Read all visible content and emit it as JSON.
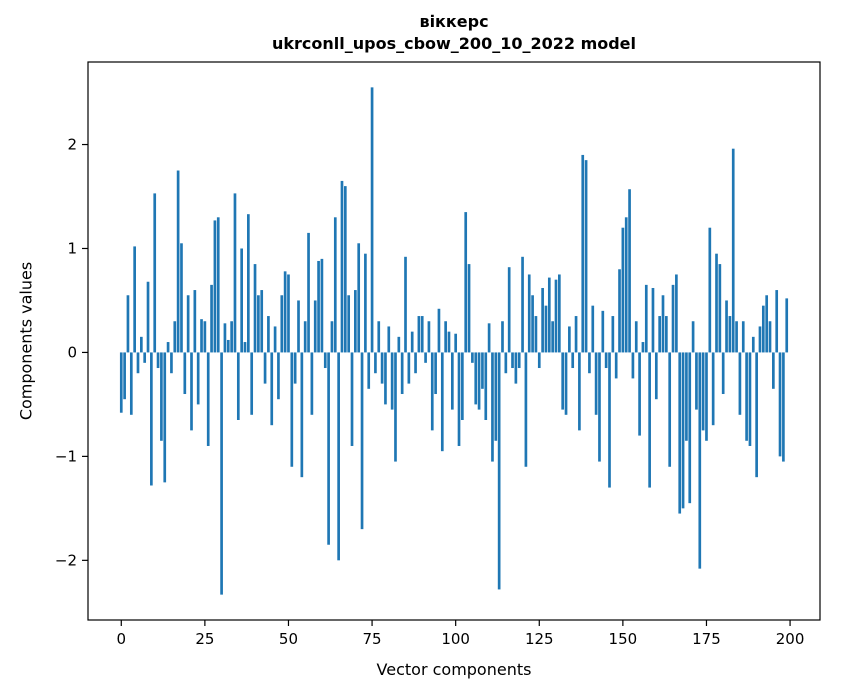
{
  "chart_data": {
    "type": "bar",
    "title": "віккерс",
    "subtitle": "ukrconll_upos_cbow_200_10_2022 model",
    "xlabel": "Vector components",
    "ylabel": "Components values",
    "bar_color": "#1f77b4",
    "x_start": 0,
    "xticks": [
      0,
      25,
      50,
      75,
      100,
      125,
      150,
      175,
      200
    ],
    "yticks": [
      -2,
      -1,
      0,
      1,
      2
    ],
    "xlim": [
      -9.95,
      208.95
    ],
    "ylim": [
      -2.574,
      2.794
    ],
    "grid": false,
    "legend": "none",
    "values": [
      -0.58,
      -0.45,
      0.55,
      -0.6,
      1.02,
      -0.2,
      0.15,
      -0.1,
      0.68,
      -1.28,
      1.53,
      -0.15,
      -0.85,
      -1.25,
      0.1,
      -0.2,
      0.3,
      1.75,
      1.05,
      -0.4,
      0.55,
      -0.75,
      0.6,
      -0.5,
      0.32,
      0.3,
      -0.9,
      0.65,
      1.27,
      1.3,
      -2.33,
      0.28,
      0.12,
      0.3,
      1.53,
      -0.65,
      1.0,
      0.1,
      1.33,
      -0.6,
      0.85,
      0.55,
      0.6,
      -0.3,
      0.35,
      -0.7,
      0.25,
      -0.45,
      0.55,
      0.78,
      0.75,
      -1.1,
      -0.3,
      0.5,
      -1.2,
      0.3,
      1.15,
      -0.6,
      0.5,
      0.88,
      0.9,
      -0.15,
      -1.85,
      0.3,
      1.3,
      -2.0,
      1.65,
      1.6,
      0.55,
      -0.9,
      0.6,
      1.05,
      -1.7,
      0.95,
      -0.35,
      2.55,
      -0.2,
      0.3,
      -0.3,
      -0.5,
      0.25,
      -0.55,
      -1.05,
      0.15,
      -0.4,
      0.92,
      -0.3,
      0.2,
      -0.2,
      0.35,
      0.35,
      -0.1,
      0.3,
      -0.75,
      -0.4,
      0.42,
      -0.95,
      0.3,
      0.2,
      -0.55,
      0.18,
      -0.9,
      -0.65,
      1.35,
      0.85,
      -0.1,
      -0.5,
      -0.55,
      -0.35,
      -0.65,
      0.28,
      -1.05,
      -0.85,
      -2.28,
      0.3,
      -0.2,
      0.82,
      -0.15,
      -0.3,
      -0.15,
      0.92,
      -1.1,
      0.75,
      0.55,
      0.35,
      -0.15,
      0.62,
      0.45,
      0.72,
      0.3,
      0.7,
      0.75,
      -0.55,
      -0.6,
      0.25,
      -0.15,
      0.35,
      -0.75,
      1.9,
      1.85,
      -0.2,
      0.45,
      -0.6,
      -1.05,
      0.4,
      -0.15,
      -1.3,
      0.35,
      -0.25,
      0.8,
      1.2,
      1.3,
      1.57,
      -0.25,
      0.3,
      -0.8,
      0.1,
      0.65,
      -1.3,
      0.62,
      -0.45,
      0.35,
      0.55,
      0.35,
      -1.1,
      0.65,
      0.75,
      -1.55,
      -1.5,
      -0.85,
      -1.45,
      0.3,
      -0.55,
      -2.08,
      -0.75,
      -0.85,
      1.2,
      -0.7,
      0.95,
      0.85,
      -0.4,
      0.5,
      0.35,
      1.96,
      0.3,
      -0.6,
      0.3,
      -0.85,
      -0.9,
      0.15,
      -1.2,
      0.25,
      0.45,
      0.55,
      0.3,
      -0.35,
      0.6,
      -1.0,
      -1.05,
      0.52
    ]
  }
}
